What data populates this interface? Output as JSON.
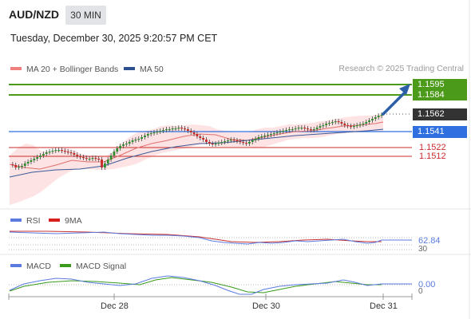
{
  "header": {
    "symbol": "AUD/NZD",
    "timeframe": "30 MIN",
    "datetime": "Tuesday, December 30, 2025 9:20:57 PM CET"
  },
  "main_legend": {
    "items": [
      {
        "label": "MA 20 + Bollinger Bands",
        "color": "#f08080"
      },
      {
        "label": "MA 50",
        "color": "#2b4f8f"
      }
    ],
    "credit": "Research © 2025 Trading Central"
  },
  "price_levels": {
    "target_high": "1.1595",
    "target_low": "1.1584",
    "last_price": "1.1562",
    "pivot": "1.1541",
    "support_1": "1.1522",
    "support_2": "1.1512"
  },
  "rsi_panel": {
    "legend": [
      {
        "label": "RSI",
        "color": "#5b7be0"
      },
      {
        "label": "9MA",
        "color": "#d62020"
      }
    ],
    "value": "62.84",
    "level_label": "30"
  },
  "macd_panel": {
    "legend": [
      {
        "label": "MACD",
        "color": "#5b7be0"
      },
      {
        "label": "MACD Signal",
        "color": "#3a9a1a"
      }
    ],
    "value": "0.00",
    "zero_label": "0"
  },
  "x_axis": {
    "dates": [
      "Dec 28",
      "Dec 30",
      "Dec 31"
    ]
  },
  "colors": {
    "target_green": "#4c9a1a",
    "pivot_blue": "#2f6fe0",
    "support_red": "#cc2b2b",
    "last_price_bg": "#333333",
    "arrow_blue": "#2d5fa8",
    "bollinger_fill": "#fde3e3",
    "candle_up": "#2f8f2f",
    "candle_down": "#c62828"
  }
}
